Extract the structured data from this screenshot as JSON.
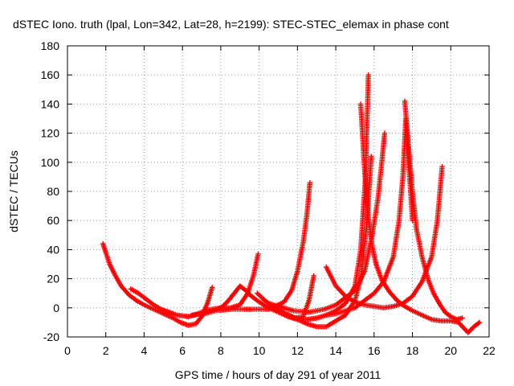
{
  "chart_data": {
    "type": "scatter",
    "title": "dSTEC Iono. truth (lpal, Lon=342, Lat=28, h=2199): STEC-STEC_elemax in phase cont",
    "xlabel": "GPS time / hours of day 291 of year 2011",
    "ylabel": "dSTEC  / TECUs",
    "xlim": [
      0,
      22
    ],
    "ylim": [
      -20,
      180
    ],
    "xticks": [
      0,
      2,
      4,
      6,
      8,
      10,
      12,
      14,
      16,
      18,
      20,
      22
    ],
    "yticks": [
      -20,
      0,
      20,
      40,
      60,
      80,
      100,
      120,
      140,
      160,
      180
    ],
    "grid": true,
    "marker": "+",
    "color": "#ff0000",
    "series": [
      {
        "x": [
          1.85,
          2.0,
          2.2,
          2.5,
          2.8,
          3.2,
          3.6,
          4.0,
          4.5,
          5.0,
          5.5,
          5.9,
          6.3,
          6.7,
          7.0,
          7.3,
          7.55
        ],
        "y": [
          44,
          38,
          30,
          22,
          15,
          9,
          5,
          2,
          -1,
          -4,
          -7,
          -10,
          -12,
          -11,
          -6,
          3,
          14
        ]
      },
      {
        "x": [
          3.3,
          3.7,
          4.1,
          4.5,
          4.9,
          5.3,
          5.7,
          6.0,
          6.3,
          6.6,
          7.0,
          7.5,
          8.0,
          8.5,
          9.0,
          9.4,
          9.7,
          9.95
        ],
        "y": [
          13,
          10,
          6,
          2,
          -1,
          -3,
          -5,
          -5.5,
          -6,
          -5,
          -3,
          -1,
          0,
          0,
          2,
          10,
          22,
          37
        ]
      },
      {
        "x": [
          6.5,
          6.8,
          7.2,
          7.7,
          8.1,
          8.4,
          8.7,
          9.0,
          9.3,
          9.6,
          10.0,
          10.5,
          11.0,
          11.5,
          12.0,
          12.5,
          13.0,
          13.5,
          14.0,
          14.5,
          15.0,
          15.3,
          15.55,
          15.7
        ],
        "y": [
          -5,
          -4.5,
          -4,
          -2,
          1,
          5,
          10,
          15,
          12,
          8,
          4,
          0,
          -3,
          -6,
          -8,
          -8,
          -7,
          -5,
          -2,
          3,
          15,
          40,
          90,
          160
        ]
      },
      {
        "x": [
          7.7,
          8.5,
          9.5,
          10.5,
          11.3,
          11.7,
          12.0,
          12.3,
          12.5,
          12.65
        ],
        "y": [
          -2,
          -1,
          -1,
          -1,
          4,
          12,
          25,
          45,
          65,
          86
        ]
      },
      {
        "x": [
          9.9,
          10.3,
          10.8,
          11.3,
          11.8,
          12.3,
          12.6,
          12.85
        ],
        "y": [
          10,
          5,
          0,
          -4,
          -7,
          -6,
          5,
          22
        ]
      },
      {
        "x": [
          10.8,
          11.2,
          11.6,
          12.0,
          12.5,
          13.0,
          13.5,
          14.0,
          14.5,
          15.0,
          15.3,
          15.6,
          15.85
        ],
        "y": [
          -1,
          -3,
          -5,
          -8,
          -11,
          -13,
          -13,
          -9,
          -5,
          5,
          20,
          55,
          104
        ]
      },
      {
        "x": [
          10.5,
          11.0,
          11.8,
          12.6,
          13.4,
          14.0,
          14.6,
          15.0,
          15.5,
          15.9,
          16.2,
          16.4,
          16.55
        ],
        "y": [
          3,
          1,
          -2,
          -3,
          -1,
          2,
          8,
          12,
          25,
          50,
          75,
          100,
          120
        ]
      },
      {
        "x": [
          15.3,
          15.5,
          15.7,
          15.9,
          16.1,
          16.4,
          16.8,
          17.2,
          17.6,
          18.0,
          18.5,
          19.0,
          19.5,
          20.0,
          20.4,
          20.9,
          21.2,
          21.5
        ],
        "y": [
          140,
          95,
          62,
          42,
          30,
          19,
          11,
          5,
          1,
          -2,
          -5,
          -8,
          -9,
          -9,
          -10,
          -17,
          -13,
          -10
        ]
      },
      {
        "x": [
          13.5,
          14.0,
          14.5,
          15.0,
          15.5,
          16.0,
          16.5,
          17.0,
          17.3,
          17.5,
          17.65,
          17.8,
          18.0
        ],
        "y": [
          -5,
          -4,
          -2,
          0,
          5,
          10,
          18,
          35,
          60,
          90,
          130,
          100,
          60
        ]
      },
      {
        "x": [
          13.5,
          14.0,
          14.5,
          15.0,
          15.5,
          16.0,
          16.5,
          17.0,
          17.5,
          18.0,
          18.5,
          19.0,
          19.3,
          19.55
        ],
        "y": [
          28,
          15,
          8,
          4,
          2,
          1,
          0,
          1,
          3,
          8,
          18,
          35,
          60,
          97
        ]
      },
      {
        "x": [
          17.6,
          17.8,
          18.0,
          18.2,
          18.5,
          18.8,
          19.1,
          19.4,
          19.7,
          20.0,
          20.3,
          20.6
        ],
        "y": [
          142,
          110,
          80,
          55,
          35,
          20,
          10,
          3,
          -3,
          -6,
          -8,
          -7
        ]
      }
    ]
  }
}
